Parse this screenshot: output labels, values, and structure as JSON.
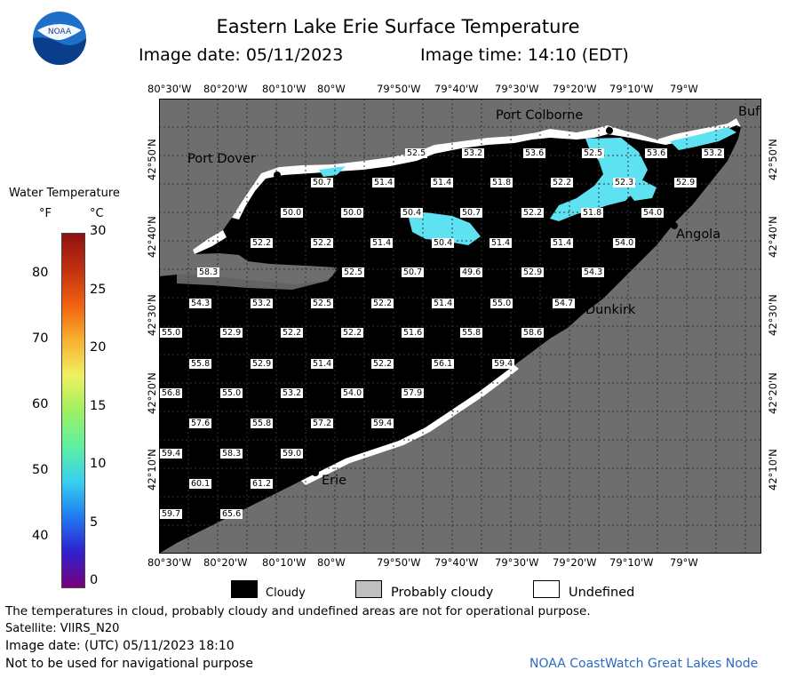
{
  "header": {
    "title": "Eastern Lake Erie Surface Temperature",
    "image_date": "Image date: 05/11/2023",
    "image_time": "Image time: 14:10 (EDT)",
    "logo_text": "NOAA"
  },
  "scale": {
    "title": "Water Temperature",
    "unit_f": "°F",
    "unit_c": "°C",
    "f_ticks": [
      "80",
      "70",
      "60",
      "50",
      "40"
    ],
    "c_ticks": [
      "30",
      "25",
      "20",
      "15",
      "10",
      "5",
      "0"
    ],
    "colors": [
      "#7a007a",
      "#3020d0",
      "#1f7cf0",
      "#38d0f0",
      "#5ff0a0",
      "#9ff060",
      "#f0f060",
      "#f8b030",
      "#f06010",
      "#c03010",
      "#901010"
    ]
  },
  "map": {
    "top_lon": [
      "80°30'W",
      "80°20'W",
      "80°10'W",
      "80°W",
      "79°50'W",
      "79°40'W",
      "79°30'W",
      "79°20'W",
      "79°10'W",
      "79°W"
    ],
    "bottom_lon": [
      "80°30'W",
      "80°20'W",
      "80°10'W",
      "80°W",
      "79°50'W",
      "79°40'W",
      "79°30'W",
      "79°20'W",
      "79°10'W",
      "79°W"
    ],
    "lat": [
      "42°50'N",
      "42°40'N",
      "42°30'N",
      "42°20'N",
      "42°10'N"
    ],
    "places": {
      "port_colborne": "Port Colborne",
      "port_dover": "Port Dover",
      "angola": "Angola",
      "dunkirk": "Dunkirk",
      "erie": "Erie",
      "buffalo": "Buf"
    },
    "colors": {
      "land": "#6e6e6e",
      "cloud": "#000000",
      "water_cold": "#5ee1f0",
      "undefined": "#ffffff",
      "grid": "#222222"
    },
    "temps": [
      "52.5",
      "53.2",
      "53.6",
      "52.5",
      "53.6",
      "53.2",
      "50.7",
      "51.4",
      "51.4",
      "51.8",
      "52.2",
      "52.3",
      "52.9",
      "50.0",
      "50.0",
      "50.4",
      "50.7",
      "52.2",
      "51.8",
      "54.0",
      "52.2",
      "52.2",
      "51.4",
      "50.4",
      "51.4",
      "51.4",
      "54.0",
      "58.3",
      "52.5",
      "50.7",
      "49.6",
      "52.9",
      "54.3",
      "54.3",
      "53.2",
      "52.5",
      "52.2",
      "51.4",
      "55.0",
      "54.7",
      "55.0",
      "52.9",
      "52.2",
      "52.2",
      "51.6",
      "55.8",
      "58.6",
      "55.8",
      "52.9",
      "51.4",
      "52.2",
      "56.1",
      "59.4",
      "56.8",
      "55.0",
      "53.2",
      "54.0",
      "57.9",
      "57.6",
      "55.8",
      "57.2",
      "59.4",
      "59.4",
      "58.3",
      "59.0",
      "60.1",
      "61.2",
      "59.7",
      "65.6"
    ]
  },
  "legend": {
    "cloudy": "Cloudy",
    "probably_cloudy": "Probably cloudy",
    "undefined": "Undefined"
  },
  "footer": {
    "disclaimer": "The temperatures in cloud, probably cloudy and undefined areas are not for operational purpose.",
    "satellite": "Satellite: VIIRS_N20",
    "utc_date": "Image date: (UTC) 05/11/2023  18:10",
    "nav_warning": "Not to be used for navigational purpose",
    "credit": "NOAA CoastWatch Great Lakes Node"
  }
}
